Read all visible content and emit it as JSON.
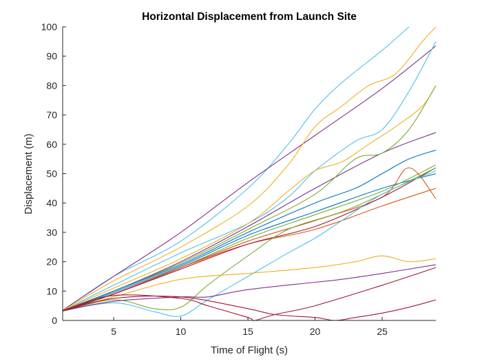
{
  "chart_data": {
    "type": "line",
    "title": "Horizontal Displacement from Launch Site",
    "xlabel": "Time of Flight (s)",
    "ylabel": "Displacement (m)",
    "xlim": [
      1.2,
      29
    ],
    "ylim": [
      0,
      100
    ],
    "xticks": [
      "5",
      "10",
      "15",
      "20",
      "25"
    ],
    "xtick_values": [
      5,
      10,
      15,
      20,
      25
    ],
    "yticks": [
      "0",
      "10",
      "20",
      "30",
      "40",
      "50",
      "60",
      "70",
      "80",
      "90",
      "100"
    ],
    "ytick_values": [
      0,
      10,
      20,
      30,
      40,
      50,
      60,
      70,
      80,
      90,
      100
    ],
    "grid": false,
    "legend": "none",
    "series": [
      {
        "color": "#4DBEEE",
        "points": [
          [
            1.2,
            3.3
          ],
          [
            5,
            15
          ],
          [
            10,
            27
          ],
          [
            15,
            45
          ],
          [
            18,
            60
          ],
          [
            20,
            72
          ],
          [
            22,
            81
          ],
          [
            25,
            92
          ],
          [
            27,
            100
          ]
        ]
      },
      {
        "color": "#7E2F8E",
        "points": [
          [
            1.2,
            3.5
          ],
          [
            5,
            15
          ],
          [
            10,
            30
          ],
          [
            15,
            47
          ],
          [
            20,
            63
          ],
          [
            25,
            79
          ],
          [
            29,
            93.5
          ]
        ]
      },
      {
        "color": "#EDB120",
        "points": [
          [
            1.2,
            3.4
          ],
          [
            5,
            13.5
          ],
          [
            10,
            25
          ],
          [
            15,
            39
          ],
          [
            18,
            53
          ],
          [
            20,
            66
          ],
          [
            22,
            73
          ],
          [
            24,
            80
          ],
          [
            26,
            84
          ],
          [
            28,
            95
          ],
          [
            29,
            100
          ]
        ]
      },
      {
        "color": "#4DBEEE",
        "points": [
          [
            1.2,
            3.3
          ],
          [
            5,
            12
          ],
          [
            10,
            23
          ],
          [
            15,
            33
          ],
          [
            18,
            42
          ],
          [
            20,
            51
          ],
          [
            23,
            61
          ],
          [
            25,
            65
          ],
          [
            27,
            78
          ],
          [
            29,
            95
          ]
        ]
      },
      {
        "color": "#EDB120",
        "points": [
          [
            1.2,
            3.4
          ],
          [
            5,
            11
          ],
          [
            10,
            21
          ],
          [
            15,
            33
          ],
          [
            18,
            44
          ],
          [
            20,
            51
          ],
          [
            22,
            54
          ],
          [
            24,
            60
          ],
          [
            26,
            66
          ],
          [
            28,
            73
          ],
          [
            29,
            80
          ]
        ]
      },
      {
        "color": "#7E2F8E",
        "points": [
          [
            1.2,
            3.4
          ],
          [
            5,
            10
          ],
          [
            10,
            20
          ],
          [
            15,
            32
          ],
          [
            20,
            45
          ],
          [
            25,
            57
          ],
          [
            29,
            64
          ]
        ]
      },
      {
        "color": "#77AC30",
        "points": [
          [
            1.2,
            3.3
          ],
          [
            5,
            10
          ],
          [
            10,
            19.5
          ],
          [
            15,
            31
          ],
          [
            20,
            43
          ],
          [
            23,
            55
          ],
          [
            25,
            57
          ],
          [
            27,
            65
          ],
          [
            29,
            80
          ]
        ]
      },
      {
        "color": "#0072BD",
        "points": [
          [
            1.2,
            3.3
          ],
          [
            5,
            10
          ],
          [
            10,
            19
          ],
          [
            15,
            30
          ],
          [
            20,
            40
          ],
          [
            23,
            45
          ],
          [
            25,
            50
          ],
          [
            27,
            55
          ],
          [
            29,
            58
          ]
        ]
      },
      {
        "color": "#0072BD",
        "points": [
          [
            1.2,
            3.3
          ],
          [
            5,
            9.5
          ],
          [
            10,
            18.5
          ],
          [
            15,
            29
          ],
          [
            20,
            37
          ],
          [
            25,
            45
          ],
          [
            29,
            50
          ]
        ]
      },
      {
        "color": "#77AC30",
        "points": [
          [
            1.2,
            3.2
          ],
          [
            5,
            9
          ],
          [
            10,
            18
          ],
          [
            15,
            28
          ],
          [
            20,
            36
          ],
          [
            25,
            44
          ],
          [
            29,
            53
          ]
        ]
      },
      {
        "color": "#D95319",
        "points": [
          [
            1.2,
            3.3
          ],
          [
            5,
            9
          ],
          [
            10,
            18
          ],
          [
            15,
            27
          ],
          [
            20,
            34
          ],
          [
            25,
            42
          ],
          [
            27,
            52
          ],
          [
            29,
            41.5
          ]
        ]
      },
      {
        "color": "#D95319",
        "points": [
          [
            1.2,
            3.2
          ],
          [
            5,
            9
          ],
          [
            10,
            18
          ],
          [
            15,
            26
          ],
          [
            20,
            31
          ],
          [
            25,
            39
          ],
          [
            29,
            45
          ]
        ]
      },
      {
        "color": "#A2142F",
        "points": [
          [
            1.2,
            3.2
          ],
          [
            5,
            9
          ],
          [
            10,
            17.5
          ],
          [
            15,
            26
          ],
          [
            20,
            32
          ],
          [
            25,
            42
          ],
          [
            29,
            52
          ]
        ]
      },
      {
        "color": "#77AC30",
        "points": [
          [
            1.2,
            3.2
          ],
          [
            5,
            7
          ],
          [
            8,
            4
          ],
          [
            10,
            4.5
          ],
          [
            12,
            12
          ],
          [
            15,
            22
          ],
          [
            18,
            31
          ],
          [
            22,
            37
          ],
          [
            25,
            43
          ],
          [
            29,
            52
          ]
        ]
      },
      {
        "color": "#4DBEEE",
        "points": [
          [
            1.2,
            3.2
          ],
          [
            5,
            6
          ],
          [
            8,
            3
          ],
          [
            10,
            1.5
          ],
          [
            12,
            7
          ],
          [
            15,
            15
          ],
          [
            18,
            23
          ],
          [
            20,
            28
          ],
          [
            22,
            34
          ],
          [
            25,
            43
          ],
          [
            29,
            51
          ]
        ]
      },
      {
        "color": "#EDB120",
        "points": [
          [
            1.2,
            3.3
          ],
          [
            5,
            8
          ],
          [
            10,
            14
          ],
          [
            15,
            16
          ],
          [
            20,
            18
          ],
          [
            23,
            20
          ],
          [
            25,
            22
          ],
          [
            27,
            20
          ],
          [
            29,
            21
          ]
        ]
      },
      {
        "color": "#7E2F8E",
        "points": [
          [
            1.2,
            3.3
          ],
          [
            5,
            6.5
          ],
          [
            10,
            8
          ],
          [
            12,
            8
          ],
          [
            15,
            10.5
          ],
          [
            20,
            13
          ],
          [
            22,
            14
          ],
          [
            25,
            16
          ],
          [
            29,
            19
          ]
        ]
      },
      {
        "color": "#A2142F",
        "points": [
          [
            1.2,
            3.3
          ],
          [
            5,
            8.5
          ],
          [
            10,
            7.5
          ],
          [
            12,
            5
          ],
          [
            15,
            1
          ],
          [
            15.5,
            0
          ],
          [
            17,
            2
          ],
          [
            20,
            5
          ],
          [
            25,
            12
          ],
          [
            29,
            18
          ]
        ]
      },
      {
        "color": "#A2142F",
        "points": [
          [
            1.2,
            3.2
          ],
          [
            5,
            7.5
          ],
          [
            10,
            8
          ],
          [
            15,
            4
          ],
          [
            17,
            2
          ],
          [
            20,
            1
          ],
          [
            21.5,
            0
          ],
          [
            23,
            1
          ],
          [
            25,
            2.5
          ],
          [
            27,
            4.5
          ],
          [
            29,
            7
          ]
        ]
      }
    ]
  }
}
